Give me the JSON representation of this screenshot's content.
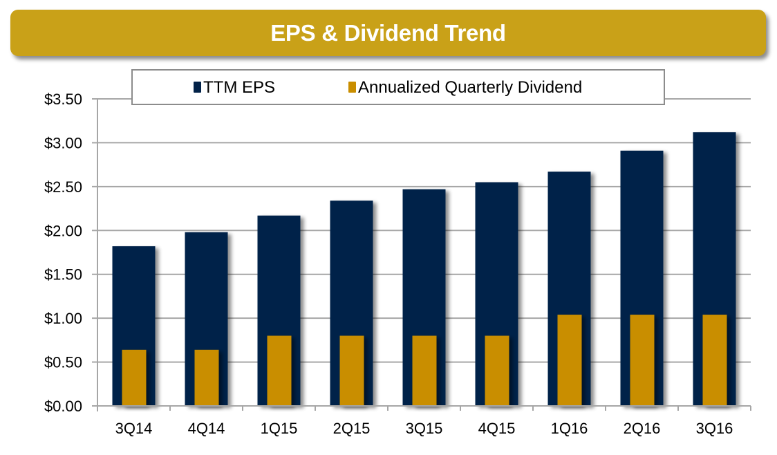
{
  "title": "EPS & Dividend Trend",
  "colors": {
    "title_bar": "#C9A118",
    "eps": "#022248",
    "dividend": "#C98E00",
    "grid": "#A6A6A6"
  },
  "chart_data": {
    "type": "bar",
    "title": "EPS & Dividend Trend",
    "xlabel": "",
    "ylabel": "",
    "categories": [
      "3Q14",
      "4Q14",
      "1Q15",
      "2Q15",
      "3Q15",
      "4Q15",
      "1Q16",
      "2Q16",
      "3Q16"
    ],
    "series": [
      {
        "name": "TTM EPS",
        "color": "#022248",
        "values": [
          1.82,
          1.98,
          2.17,
          2.34,
          2.47,
          2.55,
          2.67,
          2.91,
          3.12
        ]
      },
      {
        "name": "Annualized Quarterly Dividend",
        "color": "#C98E00",
        "values": [
          0.64,
          0.64,
          0.8,
          0.8,
          0.8,
          0.8,
          1.04,
          1.04,
          1.04
        ]
      }
    ],
    "ylim": [
      0,
      3.5
    ],
    "yticks": [
      0,
      0.5,
      1.0,
      1.5,
      2.0,
      2.5,
      3.0,
      3.5
    ],
    "ytick_labels": [
      "$0.00",
      "$0.50",
      "$1.00",
      "$1.50",
      "$2.00",
      "$2.50",
      "$3.00",
      "$3.50"
    ],
    "grid": true,
    "legend_position": "top-center",
    "bar_layout": "overlapped"
  }
}
